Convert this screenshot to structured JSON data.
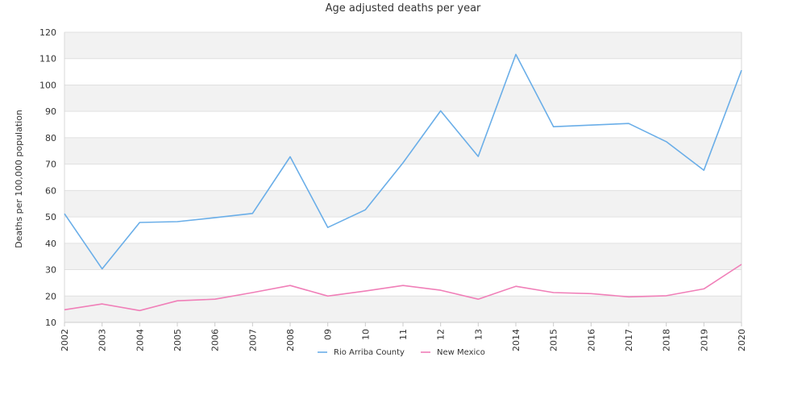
{
  "chart_data": {
    "type": "line",
    "title": "Age adjusted deaths per year",
    "xlabel": "",
    "ylabel": "Deaths per 100,000 population",
    "ylim": [
      10,
      120
    ],
    "yticks": [
      10,
      20,
      30,
      40,
      50,
      60,
      70,
      80,
      90,
      100,
      110,
      120
    ],
    "categories": [
      "2002",
      "2003",
      "2004",
      "2005",
      "2006",
      "2007",
      "2008",
      "09",
      "10",
      "11",
      "12",
      "13",
      "2014",
      "2015",
      "2016",
      "2017",
      "2018",
      "2019",
      "2020"
    ],
    "grid": "horizontal alternating bands",
    "legend_position": "bottom",
    "series": [
      {
        "name": "Rio Arriba County",
        "color": "#6aaee8",
        "values": [
          51.2,
          30.3,
          47.9,
          48.2,
          49.7,
          51.3,
          72.8,
          46.0,
          52.7,
          70.5,
          90.2,
          72.9,
          111.6,
          84.2,
          84.8,
          85.4,
          78.5,
          67.7,
          105.6
        ]
      },
      {
        "name": "New Mexico",
        "color": "#f07fb8",
        "values": [
          14.8,
          17.0,
          14.5,
          18.2,
          18.8,
          21.3,
          24.0,
          20.0,
          21.9,
          24.0,
          22.2,
          18.8,
          23.7,
          21.3,
          20.9,
          19.7,
          20.1,
          22.7,
          32.0
        ]
      }
    ]
  }
}
